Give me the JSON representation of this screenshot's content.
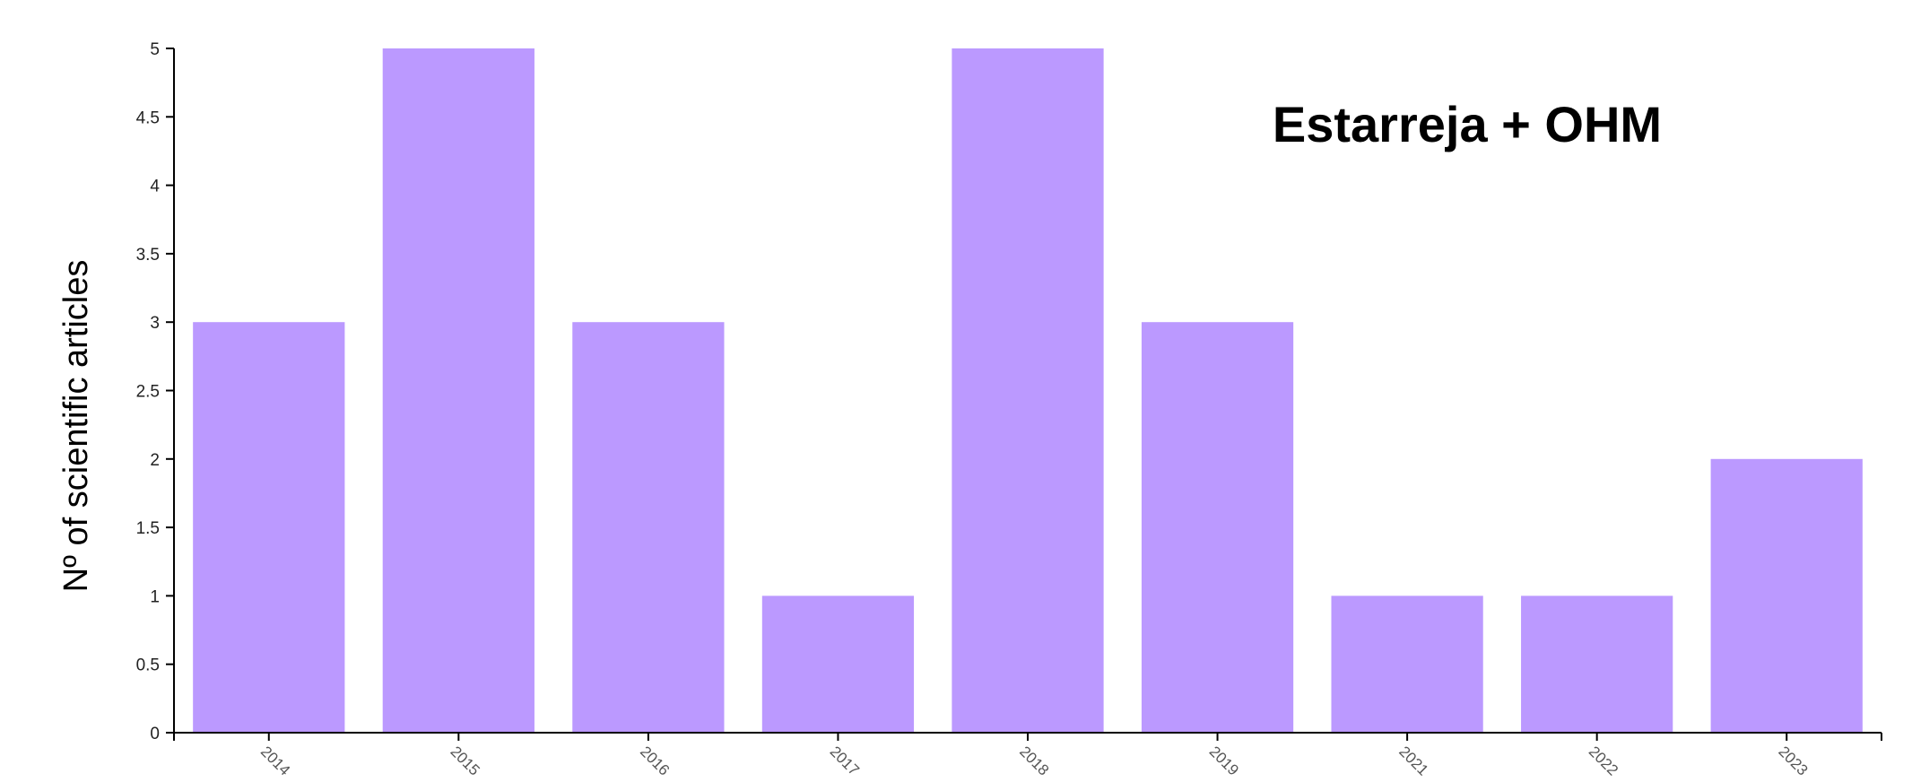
{
  "chart_data": {
    "type": "bar",
    "title": "Estarreja + OHM",
    "xlabel": "",
    "ylabel": "Nº of scientific articles",
    "categories": [
      "2014",
      "2015",
      "2016",
      "2017",
      "2018",
      "2019",
      "2021",
      "2022",
      "2023"
    ],
    "values": [
      3,
      5,
      3,
      1,
      5,
      3,
      1,
      1,
      2
    ],
    "ylim": [
      0,
      5
    ],
    "yticks": [
      "0",
      "0.5",
      "1",
      "1.5",
      "2",
      "2.5",
      "3",
      "3.5",
      "4",
      "4.5",
      "5"
    ],
    "grid": false,
    "legend": "none",
    "bar_color": "#bb99ff"
  }
}
